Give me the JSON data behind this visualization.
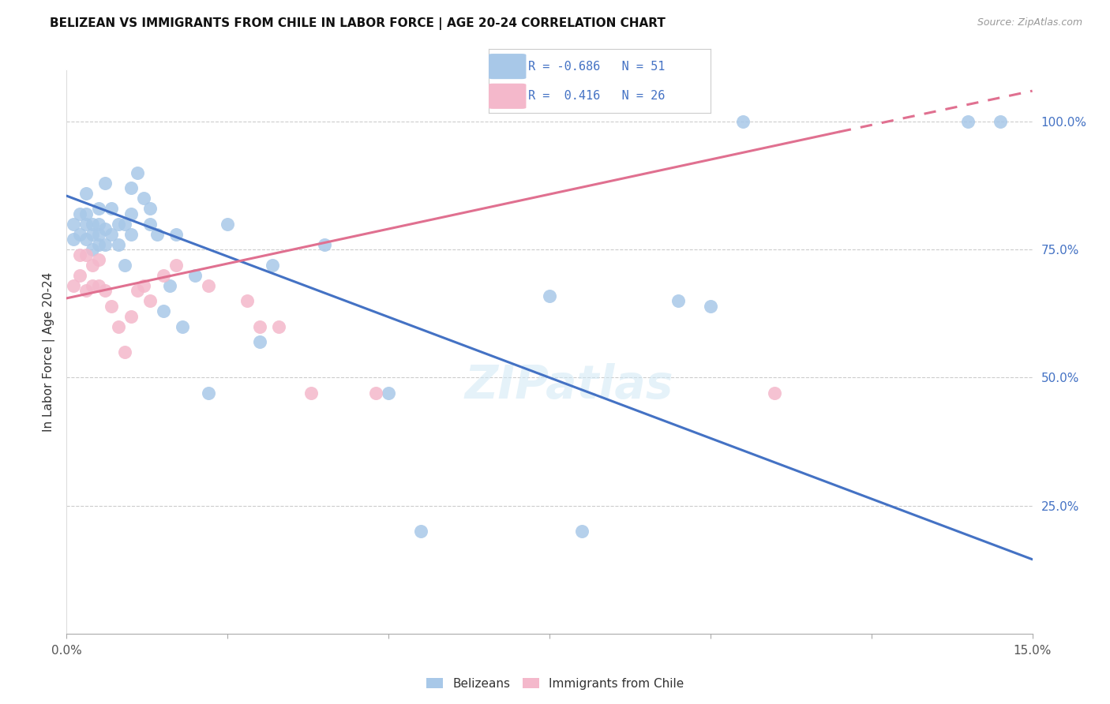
{
  "title": "BELIZEAN VS IMMIGRANTS FROM CHILE IN LABOR FORCE | AGE 20-24 CORRELATION CHART",
  "source": "Source: ZipAtlas.com",
  "ylabel": "In Labor Force | Age 20-24",
  "xlim": [
    0.0,
    0.15
  ],
  "ylim": [
    0.0,
    1.1
  ],
  "xticks": [
    0.0,
    0.025,
    0.05,
    0.075,
    0.1,
    0.125,
    0.15
  ],
  "yticks_right": [
    0.25,
    0.5,
    0.75,
    1.0
  ],
  "yticklabels_right": [
    "25.0%",
    "50.0%",
    "75.0%",
    "100.0%"
  ],
  "legend_r_blue": "-0.686",
  "legend_n_blue": "51",
  "legend_r_pink": "0.416",
  "legend_n_pink": "26",
  "blue_color": "#a8c8e8",
  "pink_color": "#f4b8cb",
  "blue_line_color": "#4472c4",
  "pink_line_color": "#e07090",
  "watermark": "ZIPatlas",
  "blue_points_x": [
    0.001,
    0.001,
    0.002,
    0.002,
    0.003,
    0.003,
    0.003,
    0.003,
    0.004,
    0.004,
    0.004,
    0.005,
    0.005,
    0.005,
    0.005,
    0.006,
    0.006,
    0.006,
    0.007,
    0.007,
    0.008,
    0.008,
    0.009,
    0.009,
    0.01,
    0.01,
    0.01,
    0.011,
    0.012,
    0.013,
    0.013,
    0.014,
    0.015,
    0.016,
    0.017,
    0.018,
    0.02,
    0.022,
    0.025,
    0.03,
    0.032,
    0.04,
    0.05,
    0.055,
    0.075,
    0.08,
    0.095,
    0.1,
    0.105,
    0.14,
    0.145
  ],
  "blue_points_y": [
    0.77,
    0.8,
    0.78,
    0.82,
    0.77,
    0.8,
    0.82,
    0.86,
    0.75,
    0.78,
    0.8,
    0.76,
    0.78,
    0.8,
    0.83,
    0.76,
    0.79,
    0.88,
    0.78,
    0.83,
    0.76,
    0.8,
    0.72,
    0.8,
    0.78,
    0.82,
    0.87,
    0.9,
    0.85,
    0.8,
    0.83,
    0.78,
    0.63,
    0.68,
    0.78,
    0.6,
    0.7,
    0.47,
    0.8,
    0.57,
    0.72,
    0.76,
    0.47,
    0.2,
    0.66,
    0.2,
    0.65,
    0.64,
    1.0,
    1.0,
    1.0
  ],
  "pink_points_x": [
    0.001,
    0.002,
    0.002,
    0.003,
    0.003,
    0.004,
    0.004,
    0.005,
    0.005,
    0.006,
    0.007,
    0.008,
    0.009,
    0.01,
    0.011,
    0.012,
    0.013,
    0.015,
    0.017,
    0.022,
    0.028,
    0.03,
    0.033,
    0.038,
    0.048,
    0.11
  ],
  "pink_points_y": [
    0.68,
    0.7,
    0.74,
    0.67,
    0.74,
    0.68,
    0.72,
    0.68,
    0.73,
    0.67,
    0.64,
    0.6,
    0.55,
    0.62,
    0.67,
    0.68,
    0.65,
    0.7,
    0.72,
    0.68,
    0.65,
    0.6,
    0.6,
    0.47,
    0.47,
    0.47
  ],
  "blue_line_x0": 0.0,
  "blue_line_x1": 0.15,
  "blue_line_y0": 0.855,
  "blue_line_y1": 0.145,
  "pink_line_solid_x0": 0.0,
  "pink_line_solid_x1": 0.12,
  "pink_line_solid_y0": 0.655,
  "pink_line_solid_y1": 0.98,
  "pink_line_dash_x0": 0.12,
  "pink_line_dash_x1": 0.15,
  "pink_line_dash_y0": 0.98,
  "pink_line_dash_y1": 1.06
}
